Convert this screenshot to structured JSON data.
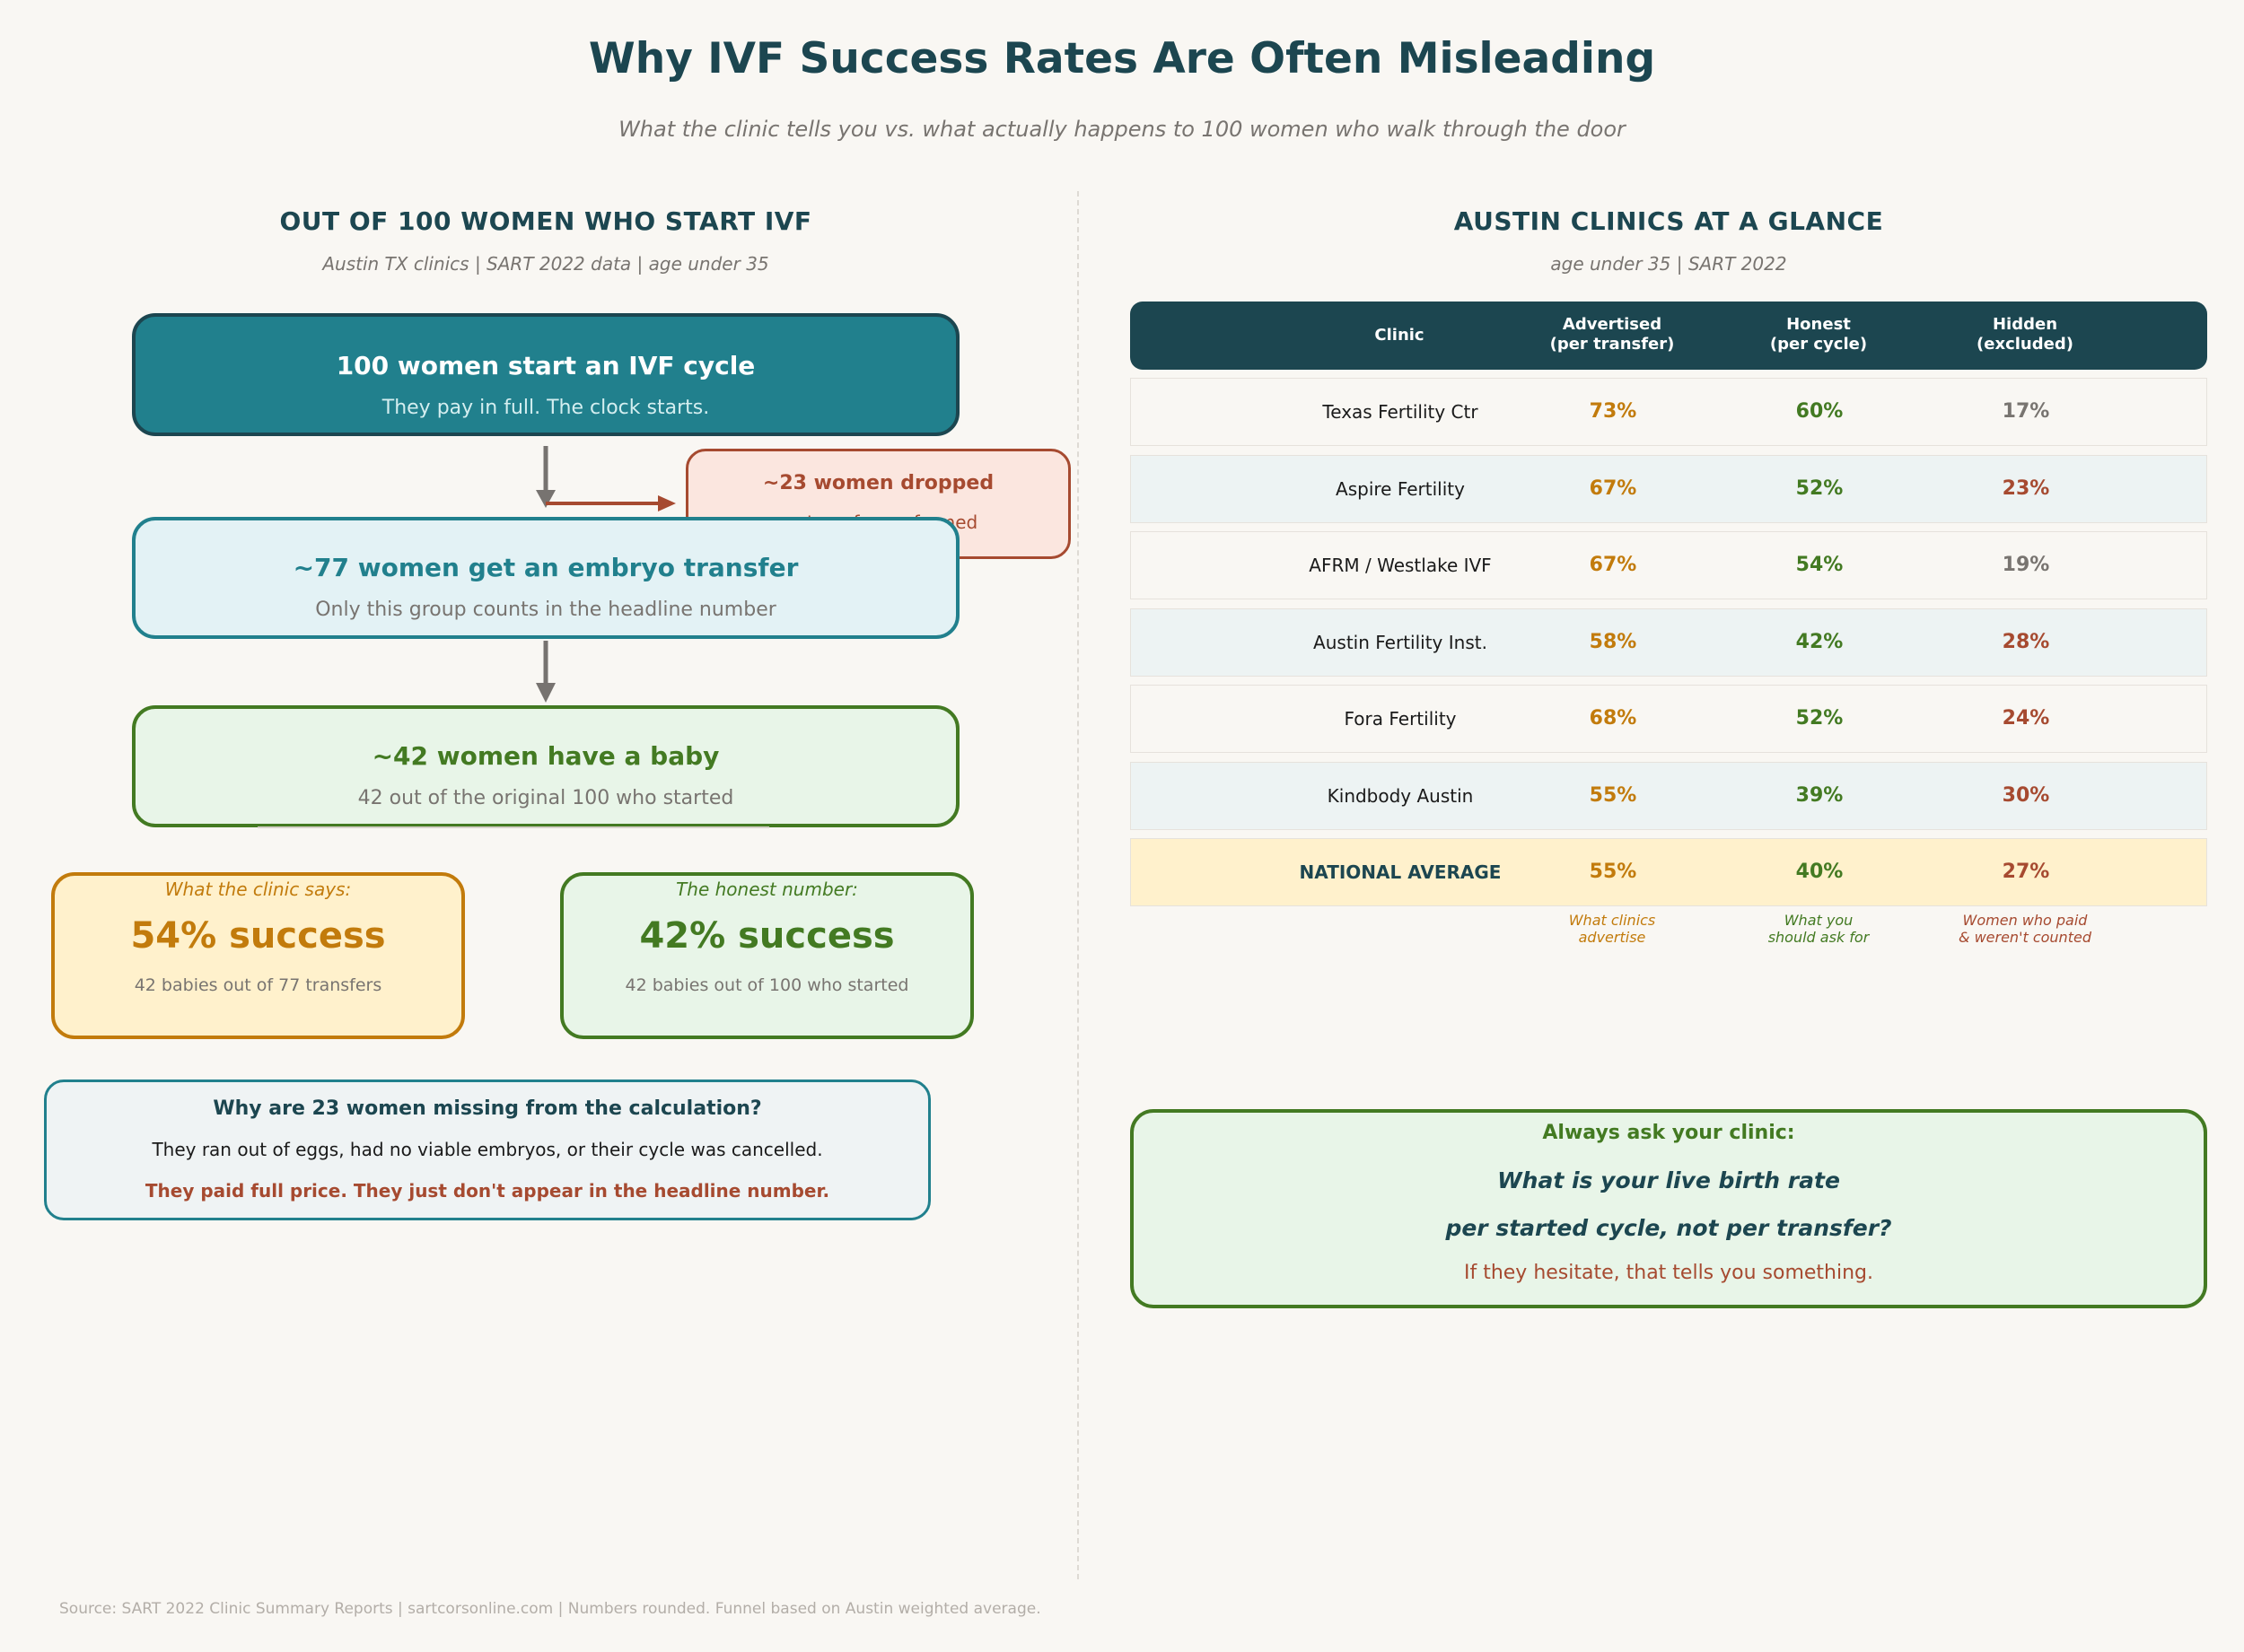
{
  "title": "Why IVF Success Rates Are Often Misleading",
  "subtitle": "What the clinic tells you vs. what actually happens to 100 women who walk through the door",
  "funnel": {
    "heading": "OUT OF 100 WOMEN WHO START IVF",
    "subheading": "Austin TX clinics  |  SART 2022 data  |  age under 35",
    "start": {
      "title": "100 women start an IVF cycle",
      "sub": "They pay in full. The clock starts."
    },
    "dropped": {
      "title": "~23 women dropped",
      "sub": "no transfer performed"
    },
    "transfer": {
      "title": "~77 women get an embryo transfer",
      "sub": "Only this group counts in the headline number"
    },
    "baby": {
      "title": "~42 women have a baby",
      "sub": "42 out of the original 100 who started"
    },
    "clinic_says": {
      "label": "What the clinic says:",
      "value": "54% success",
      "sub": "42 babies out of 77 transfers"
    },
    "honest": {
      "label": "The honest number:",
      "value": "42% success",
      "sub": "42 babies out of 100 who started"
    },
    "why": {
      "question": "Why are 23 women missing from the calculation?",
      "reason": "They ran out of eggs, had no viable embryos, or their cycle was cancelled.",
      "emphasis": "They paid full price. They just don't appear in the headline number."
    }
  },
  "table": {
    "heading": "AUSTIN CLINICS AT A GLANCE",
    "subheading": "age under 35  |  SART 2022",
    "columns": {
      "clinic": "Clinic",
      "advertised": [
        "Advertised",
        "(per transfer)"
      ],
      "honest": [
        "Honest",
        "(per cycle)"
      ],
      "hidden": [
        "Hidden",
        "(excluded)"
      ]
    },
    "rows": [
      {
        "clinic": "Texas Fertility Ctr",
        "advertised": "73%",
        "honest": "60%",
        "hidden": "17%"
      },
      {
        "clinic": "Aspire Fertility",
        "advertised": "67%",
        "honest": "52%",
        "hidden": "23%"
      },
      {
        "clinic": "AFRM / Westlake IVF",
        "advertised": "67%",
        "honest": "54%",
        "hidden": "19%"
      },
      {
        "clinic": "Austin Fertility Inst.",
        "advertised": "58%",
        "honest": "42%",
        "hidden": "28%"
      },
      {
        "clinic": "Fora Fertility",
        "advertised": "68%",
        "honest": "52%",
        "hidden": "24%"
      },
      {
        "clinic": "Kindbody Austin",
        "advertised": "55%",
        "honest": "39%",
        "hidden": "30%"
      },
      {
        "clinic": "NATIONAL AVERAGE",
        "advertised": "55%",
        "honest": "40%",
        "hidden": "27%"
      }
    ],
    "notes": {
      "advertised": [
        "What clinics",
        "advertise"
      ],
      "honest": [
        "What you",
        "should ask for"
      ],
      "hidden": [
        "Women who paid",
        "& weren't counted"
      ]
    }
  },
  "ask": {
    "label": "Always ask your clinic:",
    "question_line1": "What is your live birth rate",
    "question_line2": "per started cycle, not per transfer?",
    "warning": "If they hesitate, that tells you something."
  },
  "footer": "Source: SART 2022 Clinic Summary Reports  |  sartcorsonline.com  |  Numbers rounded. Funnel based on Austin weighted average.",
  "colors": {
    "navy": "#1c4650",
    "teal": "#21808d",
    "green": "#437a22",
    "orange": "#c27b0c",
    "rust": "#a64a30",
    "gray": "#787470"
  }
}
